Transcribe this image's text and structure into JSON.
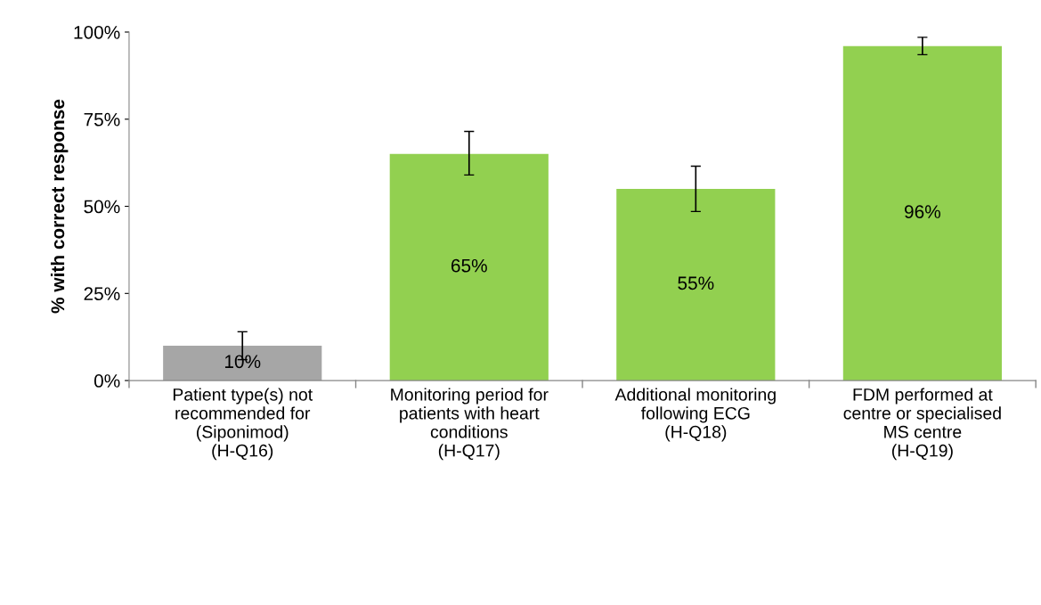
{
  "chart_data": {
    "type": "bar",
    "ylabel": "% with correct response",
    "categories": [
      "Patient type(s) not\nrecommended for\n(Siponimod)\n(H-Q16)",
      "Monitoring period for\npatients with heart\nconditions\n(H-Q17)",
      "Additional monitoring\nfollowing ECG\n(H-Q18)",
      "FDM performed at\ncentre or specialised\nMS centre\n(H-Q19)"
    ],
    "values": [
      10,
      65,
      55,
      96
    ],
    "colors": [
      "#a6a6a6",
      "#92d050",
      "#92d050",
      "#92d050"
    ],
    "errors": [
      [
        6,
        14
      ],
      [
        59,
        71.5
      ],
      [
        48.5,
        61.5
      ],
      [
        93.5,
        98.5
      ]
    ],
    "value_labels": [
      "10%",
      "65%",
      "55%",
      "96%"
    ],
    "ylim": [
      0,
      100
    ],
    "yticks": [
      {
        "value": 0,
        "label": "0%"
      },
      {
        "value": 25,
        "label": "25%"
      },
      {
        "value": 50,
        "label": "50%"
      },
      {
        "value": 75,
        "label": "75%"
      },
      {
        "value": 100,
        "label": "100%"
      }
    ],
    "grid": false
  }
}
